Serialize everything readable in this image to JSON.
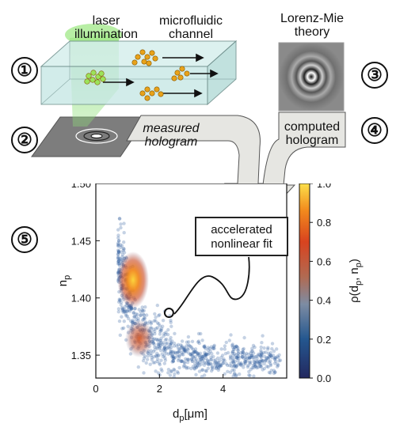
{
  "steps": [
    "①",
    "②",
    "③",
    "④",
    "⑤"
  ],
  "labels": {
    "laser": "laser\nillumination",
    "microfluidic": "microfluidic\nchannel",
    "lorenz_mie": "Lorenz-Mie\ntheory",
    "measured": "measured\nhologram",
    "computed": "computed\nhologram",
    "fit": "accelerated\nnonlinear fit"
  },
  "colors": {
    "channel_fill": "#bfe6e4",
    "laser_green": "#7fd36a",
    "particle_orange": "#e8a21a",
    "arrow_fill": "#e4e4e0",
    "scatter_blue": "#2f5f9e"
  },
  "chart_data": {
    "type": "scatter",
    "density": "kernel density heatmap over scatter points",
    "xlabel": "d_p [μm]",
    "ylabel": "n_p",
    "colorbar_label": "ρ(d_p, n_p)",
    "xlim": [
      0,
      6
    ],
    "ylim": [
      1.33,
      1.5
    ],
    "xticks": [
      "0",
      "2",
      "4"
    ],
    "yticks": [
      "1.35",
      "1.40",
      "1.45",
      "1.50"
    ],
    "colorbar_ticks": [
      "0.0",
      "0.2",
      "0.4",
      "0.6",
      "0.8",
      "1.0"
    ],
    "colorbar_range": [
      0,
      1
    ],
    "density_peaks": [
      {
        "x": 1.1,
        "y": 1.413,
        "rho": 1.0
      },
      {
        "x": 1.2,
        "y": 1.372,
        "rho": 0.55
      }
    ],
    "highlighted_point": {
      "x": 2.3,
      "y": 1.387
    },
    "grid": false
  }
}
